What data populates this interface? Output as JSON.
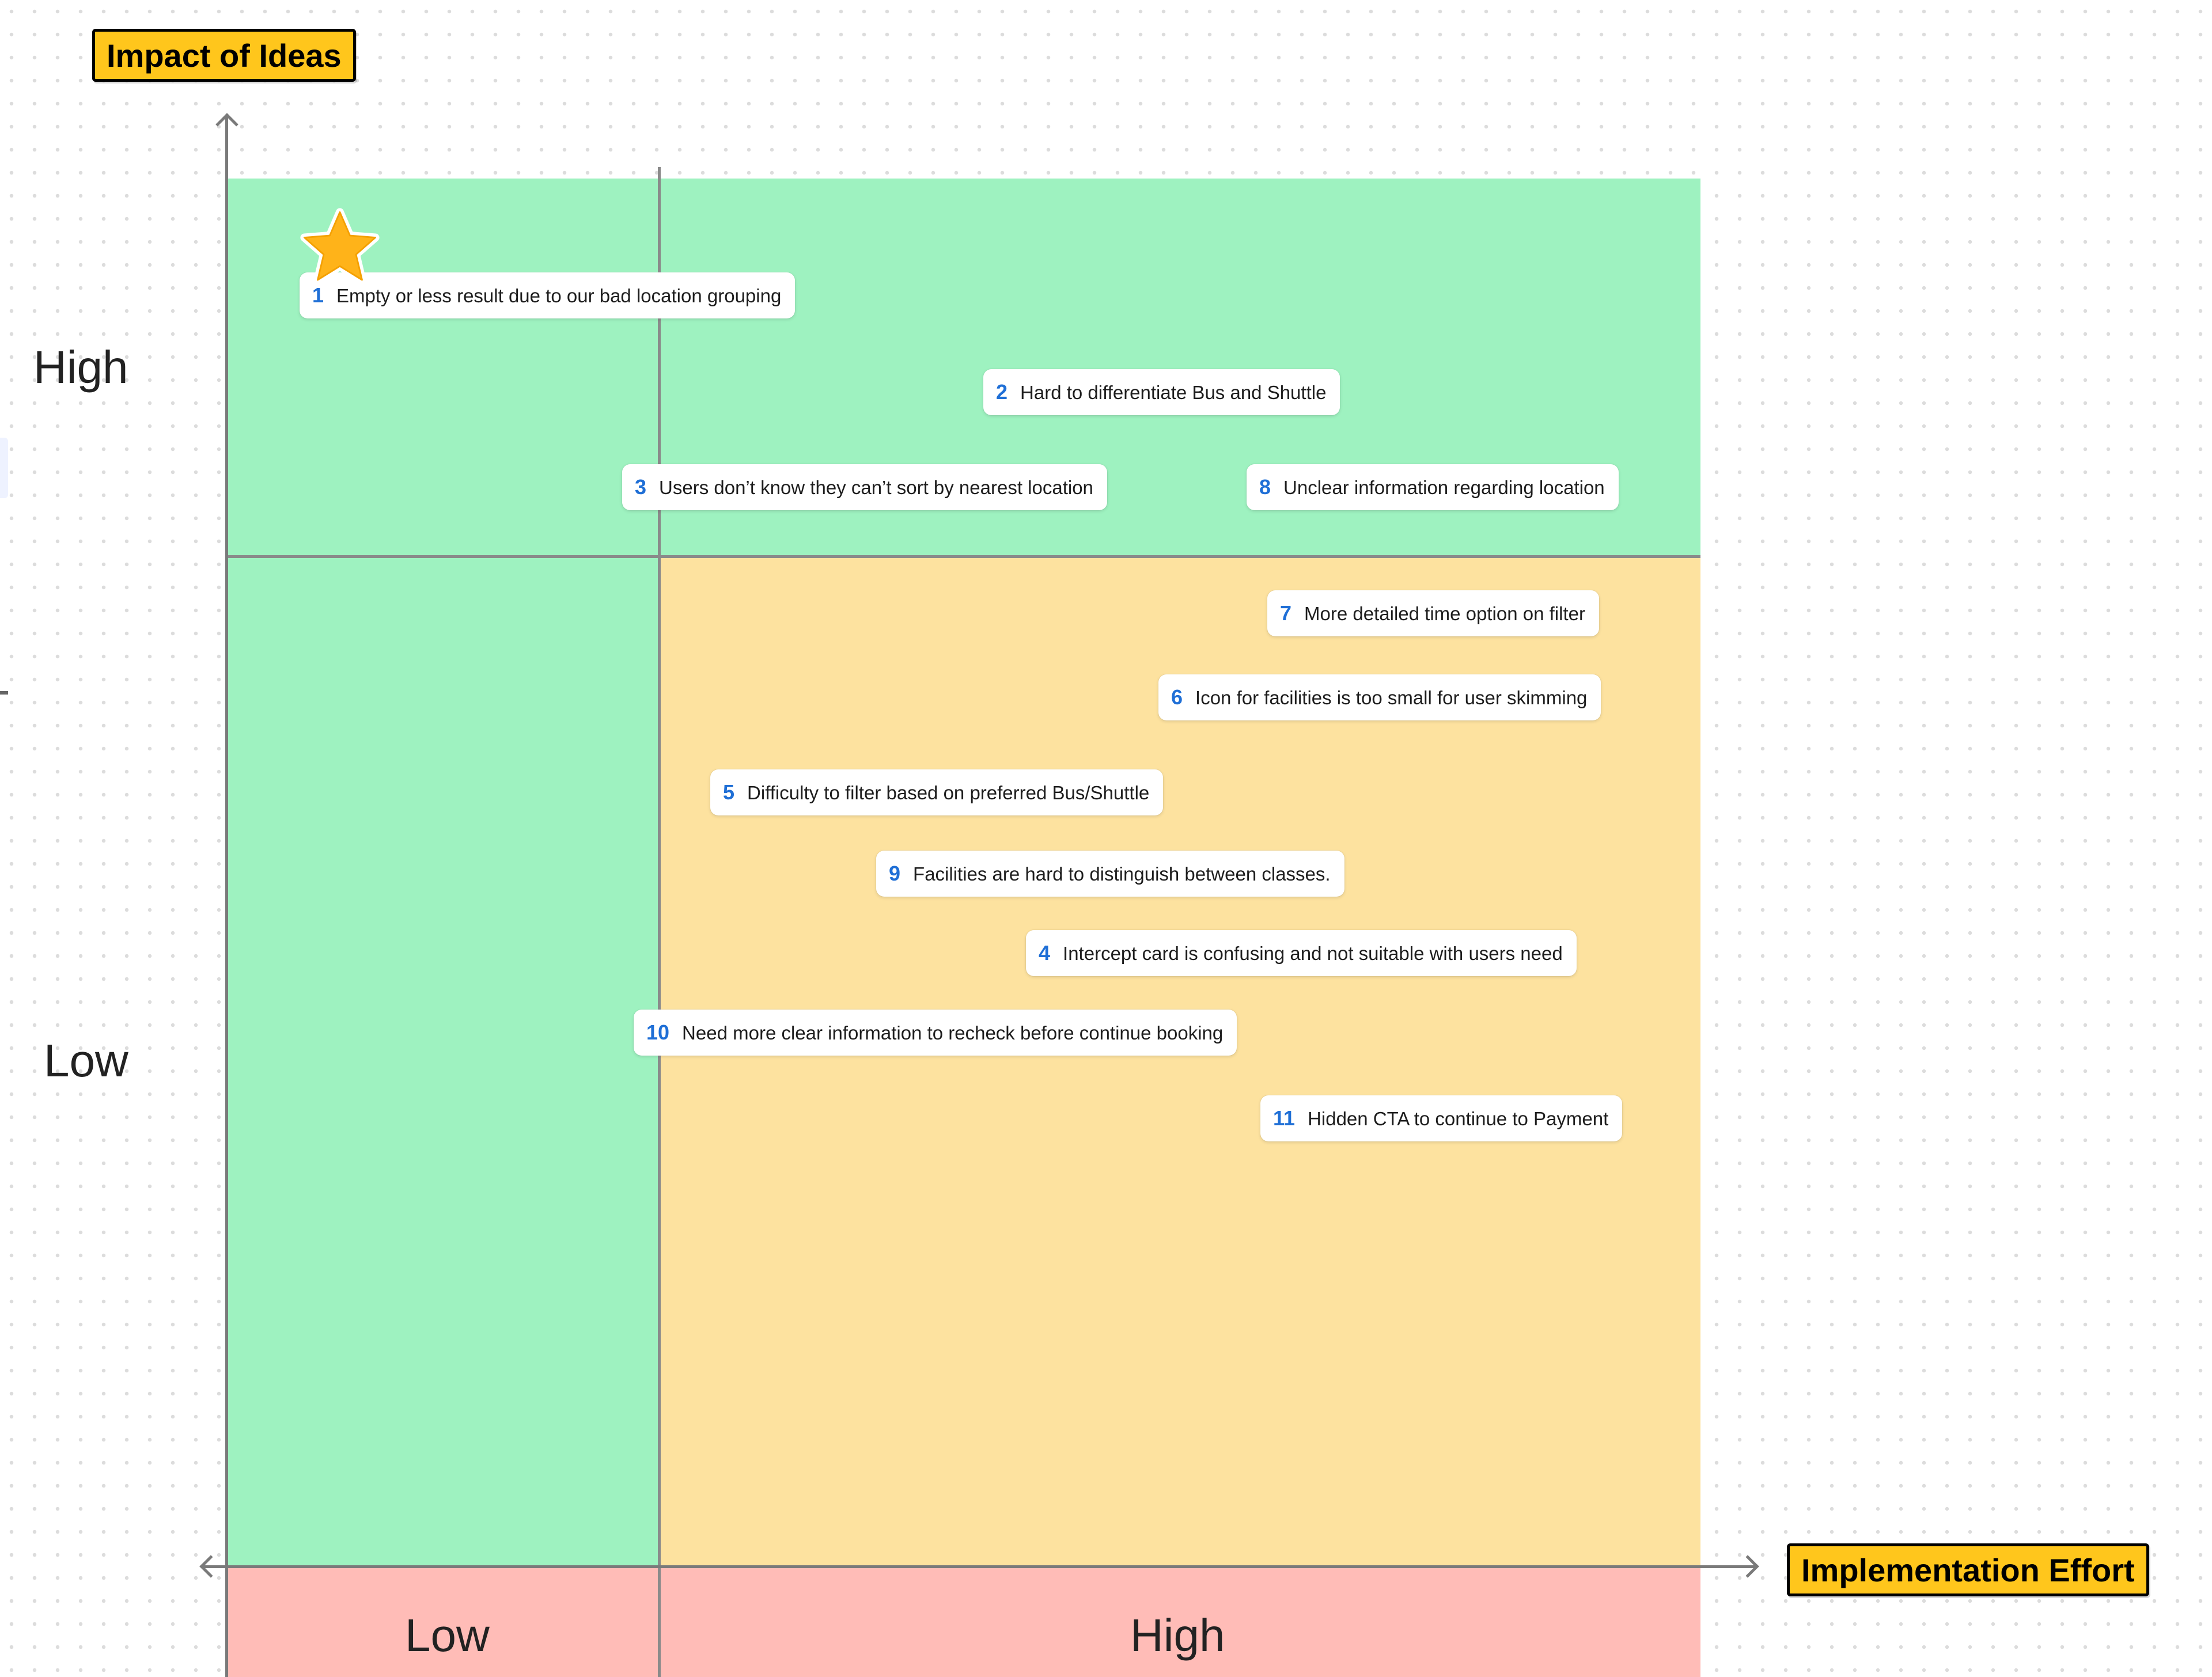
{
  "axes": {
    "y_title": "Impact of Ideas",
    "x_title": "Implementation Effort",
    "y_levels": {
      "high": "High",
      "low": "Low"
    },
    "x_levels": {
      "low": "Low",
      "high": "High"
    }
  },
  "zone_colors": {
    "green": "#9ef2c0",
    "yellow": "#fde29f",
    "red": "#ffbcb7",
    "tag": "#ffc61c",
    "number": "#1f6fd6"
  },
  "highlight_icon": "star-icon",
  "ideas": [
    {
      "number": "1",
      "text": "Empty or less result due to our bad location grouping"
    },
    {
      "number": "2",
      "text": "Hard to differentiate Bus and Shuttle"
    },
    {
      "number": "3",
      "text": "Users don’t know they can’t sort by nearest location"
    },
    {
      "number": "8",
      "text": "Unclear information regarding location"
    },
    {
      "number": "7",
      "text": "More detailed time option on filter"
    },
    {
      "number": "6",
      "text": "Icon for facilities is too small for user skimming"
    },
    {
      "number": "5",
      "text": "Difficulty to filter based on preferred Bus/Shuttle"
    },
    {
      "number": "9",
      "text": "Facilities are hard to distinguish between classes."
    },
    {
      "number": "4",
      "text": "Intercept card is confusing and not suitable with users need"
    },
    {
      "number": "10",
      "text": "Need more clear information to recheck before continue booking"
    },
    {
      "number": "11",
      "text": "Hidden CTA to continue to Payment"
    }
  ]
}
